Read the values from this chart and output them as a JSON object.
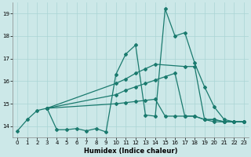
{
  "xlabel": "Humidex (Indice chaleur)",
  "background_color": "#cce8e8",
  "grid_color": "#aad4d4",
  "line_color": "#1a7a6e",
  "xlim": [
    -0.5,
    23.5
  ],
  "ylim": [
    13.5,
    19.5
  ],
  "yticks": [
    14,
    15,
    16,
    17,
    18,
    19
  ],
  "xticks": [
    0,
    1,
    2,
    3,
    4,
    5,
    6,
    7,
    8,
    9,
    10,
    11,
    12,
    13,
    14,
    15,
    16,
    17,
    18,
    19,
    20,
    21,
    22,
    23
  ],
  "series": {
    "line_jagged": {
      "x": [
        0,
        1,
        2,
        3,
        4,
        5,
        6,
        7,
        8,
        9,
        10,
        11,
        12,
        13,
        14,
        15,
        16,
        17,
        18,
        19,
        20,
        21,
        22,
        23
      ],
      "y": [
        13.8,
        14.3,
        14.7,
        14.8,
        13.85,
        13.85,
        13.9,
        13.8,
        13.9,
        13.75,
        16.3,
        17.2,
        17.6,
        14.5,
        14.45,
        19.2,
        18.0,
        18.15,
        16.8,
        15.75,
        14.85,
        14.3,
        14.2,
        14.2
      ]
    },
    "line_upper_diag": {
      "x": [
        3,
        10,
        11,
        12,
        13,
        14,
        17,
        18,
        19,
        20,
        21,
        22,
        23
      ],
      "y": [
        14.8,
        15.9,
        16.1,
        16.35,
        16.55,
        16.75,
        16.65,
        16.65,
        14.3,
        14.2,
        14.2,
        14.2,
        14.2
      ]
    },
    "line_mid_diag": {
      "x": [
        3,
        10,
        11,
        12,
        13,
        14,
        15,
        16,
        17,
        18,
        19,
        20,
        21,
        22,
        23
      ],
      "y": [
        14.8,
        15.4,
        15.6,
        15.75,
        15.9,
        16.05,
        16.2,
        16.35,
        14.45,
        14.45,
        14.3,
        14.3,
        14.2,
        14.2,
        14.2
      ]
    },
    "line_lower_flat": {
      "x": [
        3,
        10,
        11,
        12,
        13,
        14,
        15,
        16,
        17,
        18,
        19,
        20,
        21,
        22,
        23
      ],
      "y": [
        14.8,
        15.0,
        15.05,
        15.1,
        15.15,
        15.2,
        14.45,
        14.45,
        14.45,
        14.45,
        14.3,
        14.3,
        14.2,
        14.2,
        14.2
      ]
    }
  }
}
